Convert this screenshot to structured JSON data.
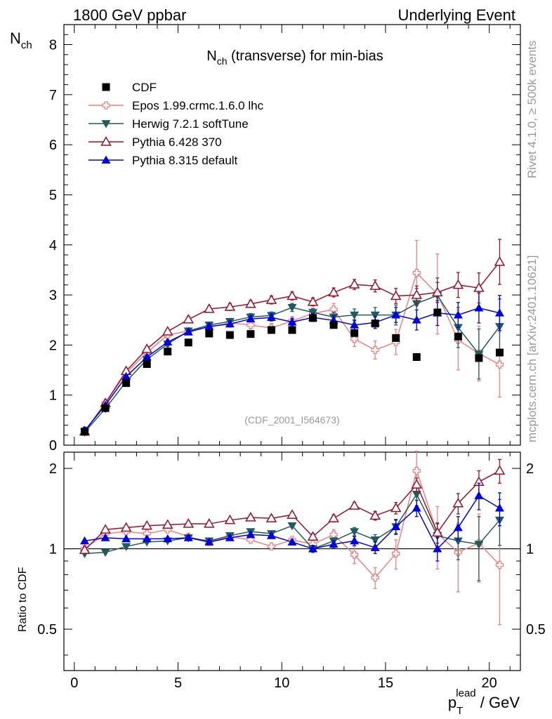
{
  "header": {
    "left": "1800 GeV ppbar",
    "right": "Underlying Event"
  },
  "side": {
    "rivet": "Rivet 4.1.0, ≥ 500k events",
    "mcplots": "mcplots.cern.ch [arXiv:2401.10621]"
  },
  "chart_data": {
    "type": "scatter",
    "title": "N_ch (transverse) for min-bias",
    "title_main": "N",
    "title_sub": "ch",
    "title_rest": " (transverse) for min-bias",
    "ylabel_main": "N",
    "ylabel_sub": "ch",
    "xlabel_main": "p",
    "xlabel_sub": "T",
    "xlabel_sup": "lead",
    "xlabel_rest": " / GeV",
    "ratio_ylabel": "Ratio to CDF",
    "analysis_label": "(CDF_2001_I564673)",
    "xlim": [
      -0.5,
      21.5
    ],
    "ylim": [
      0,
      8.4
    ],
    "ratio_ylim": [
      0.35,
      2.3
    ],
    "xticks": [
      0,
      5,
      10,
      15,
      20
    ],
    "yticks": [
      0,
      1,
      2,
      3,
      4,
      5,
      6,
      7,
      8
    ],
    "ratio_yticks": [
      0.5,
      1,
      2
    ],
    "x": [
      0.5,
      1.5,
      2.5,
      3.5,
      4.5,
      5.5,
      6.5,
      7.5,
      8.5,
      9.5,
      10.5,
      11.5,
      12.5,
      13.5,
      14.5,
      15.5,
      16.5,
      17.5,
      18.5,
      19.5,
      20.5
    ],
    "series": [
      {
        "name": "CDF",
        "color": "#000000",
        "marker": "square",
        "values": [
          0.27,
          0.74,
          1.24,
          1.62,
          1.87,
          2.05,
          2.23,
          2.2,
          2.22,
          2.3,
          2.3,
          2.54,
          2.4,
          2.24,
          2.43,
          2.14,
          1.76,
          2.65,
          2.17,
          1.74,
          1.85
        ],
        "errors": [
          0,
          0,
          0,
          0,
          0,
          0,
          0,
          0,
          0,
          0,
          0,
          0,
          0,
          0,
          0,
          0,
          0,
          0,
          0,
          0,
          0
        ]
      },
      {
        "name": "Epos 1.99.crmc.1.6.0 lhc",
        "color": "#f08080",
        "marker": "cross",
        "values": [
          0.27,
          0.84,
          1.44,
          1.85,
          2.2,
          2.28,
          2.36,
          2.44,
          2.4,
          2.34,
          2.48,
          2.63,
          2.71,
          2.12,
          1.9,
          2.06,
          3.44,
          3.02,
          2.1,
          1.83,
          1.61
        ],
        "errors": [
          0.02,
          0.03,
          0.04,
          0.05,
          0.06,
          0.06,
          0.07,
          0.08,
          0.08,
          0.09,
          0.09,
          0.1,
          0.12,
          0.15,
          0.18,
          0.25,
          0.65,
          0.8,
          0.6,
          0.55,
          0.65
        ],
        "ratio": [
          1.0,
          1.14,
          1.16,
          1.14,
          1.18,
          1.11,
          1.06,
          1.11,
          1.08,
          1.02,
          1.08,
          1.04,
          1.13,
          0.95,
          0.78,
          0.96,
          1.96,
          1.14,
          0.97,
          1.05,
          0.87
        ],
        "ratio_errors": [
          0.02,
          0.02,
          0.02,
          0.02,
          0.02,
          0.02,
          0.02,
          0.02,
          0.03,
          0.03,
          0.03,
          0.04,
          0.05,
          0.07,
          0.07,
          0.12,
          0.36,
          0.3,
          0.28,
          0.3,
          0.35
        ]
      },
      {
        "name": "Herwig 7.2.1 softTune",
        "color": "#205c5c",
        "marker": "triangle-down",
        "values": [
          0.26,
          0.73,
          1.27,
          1.71,
          2.02,
          2.28,
          2.4,
          2.47,
          2.56,
          2.59,
          2.75,
          2.65,
          2.56,
          2.6,
          2.6,
          2.6,
          2.83,
          2.99,
          2.35,
          1.82,
          2.37
        ],
        "errors": [
          0.02,
          0.03,
          0.03,
          0.04,
          0.05,
          0.05,
          0.06,
          0.06,
          0.07,
          0.07,
          0.08,
          0.08,
          0.1,
          0.12,
          0.15,
          0.2,
          0.3,
          0.35,
          0.4,
          0.5,
          0.55
        ],
        "ratio": [
          0.96,
          0.97,
          1.02,
          1.06,
          1.07,
          1.1,
          1.07,
          1.12,
          1.16,
          1.14,
          1.22,
          1.0,
          1.07,
          1.16,
          1.08,
          1.21,
          1.6,
          1.12,
          1.07,
          1.04,
          1.28
        ],
        "ratio_errors": [
          0.01,
          0.01,
          0.01,
          0.01,
          0.01,
          0.02,
          0.02,
          0.02,
          0.02,
          0.02,
          0.02,
          0.02,
          0.03,
          0.04,
          0.05,
          0.08,
          0.15,
          0.12,
          0.16,
          0.28,
          0.25
        ]
      },
      {
        "name": "Pythia 6.428 370",
        "color": "#9a1027",
        "marker": "triangle-open",
        "values": [
          0.27,
          0.84,
          1.48,
          1.92,
          2.27,
          2.51,
          2.72,
          2.76,
          2.82,
          2.9,
          2.98,
          2.86,
          3.05,
          3.21,
          3.18,
          2.98,
          3.0,
          3.05,
          3.2,
          3.14,
          3.66
        ],
        "errors": [
          0.02,
          0.03,
          0.04,
          0.05,
          0.05,
          0.06,
          0.06,
          0.07,
          0.07,
          0.08,
          0.08,
          0.08,
          0.09,
          0.1,
          0.12,
          0.15,
          0.18,
          0.2,
          0.25,
          0.3,
          0.45
        ],
        "ratio": [
          0.99,
          1.18,
          1.2,
          1.22,
          1.23,
          1.24,
          1.24,
          1.28,
          1.31,
          1.3,
          1.34,
          1.11,
          1.3,
          1.45,
          1.33,
          1.42,
          1.74,
          1.15,
          1.48,
          1.78,
          1.96
        ],
        "ratio_errors": [
          0.01,
          0.02,
          0.02,
          0.02,
          0.02,
          0.02,
          0.02,
          0.02,
          0.03,
          0.03,
          0.03,
          0.03,
          0.04,
          0.04,
          0.05,
          0.07,
          0.1,
          0.1,
          0.13,
          0.18,
          0.2
        ]
      },
      {
        "name": "Pythia 8.315 default",
        "color": "#0000e0",
        "marker": "triangle-up",
        "values": [
          0.29,
          0.8,
          1.37,
          1.76,
          2.06,
          2.26,
          2.37,
          2.42,
          2.52,
          2.55,
          2.46,
          2.55,
          2.49,
          2.4,
          2.45,
          2.6,
          2.5,
          2.64,
          2.6,
          2.74,
          2.64
        ],
        "errors": [
          0.02,
          0.03,
          0.03,
          0.04,
          0.04,
          0.05,
          0.05,
          0.06,
          0.06,
          0.07,
          0.07,
          0.08,
          0.09,
          0.1,
          0.12,
          0.15,
          0.2,
          0.25,
          0.25,
          0.3,
          0.35
        ],
        "ratio": [
          1.07,
          1.1,
          1.09,
          1.09,
          1.09,
          1.1,
          1.06,
          1.1,
          1.13,
          1.12,
          1.06,
          1.0,
          1.04,
          1.07,
          1.01,
          1.21,
          1.42,
          1.0,
          1.2,
          1.58,
          1.42
        ],
        "ratio_errors": [
          0.01,
          0.01,
          0.01,
          0.01,
          0.01,
          0.02,
          0.02,
          0.02,
          0.02,
          0.02,
          0.02,
          0.03,
          0.03,
          0.04,
          0.05,
          0.07,
          0.1,
          0.1,
          0.12,
          0.18,
          0.2
        ]
      }
    ]
  }
}
